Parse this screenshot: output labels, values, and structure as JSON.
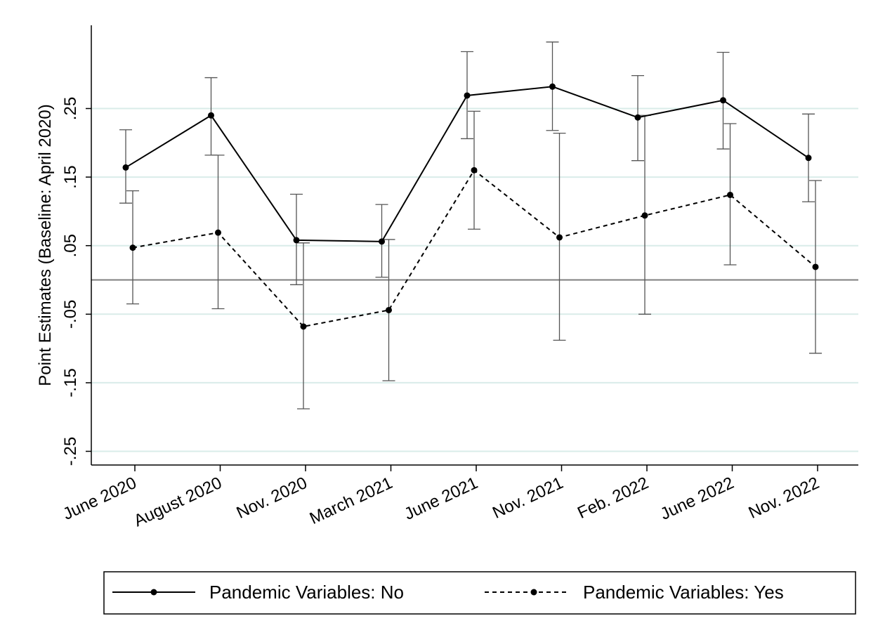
{
  "chart_data": {
    "type": "line",
    "title": "",
    "xlabel": "",
    "ylabel": "Point Estimates (Baseline: April 2020)",
    "categories": [
      "June 2020",
      "August 2020",
      "Nov. 2020",
      "March 2021",
      "June 2021",
      "Nov. 2021",
      "Feb. 2022",
      "June 2022",
      "Nov. 2022"
    ],
    "y_ticks": [
      -0.25,
      -0.15,
      -0.05,
      0.05,
      0.15,
      0.25
    ],
    "y_tick_labels": [
      "-.25",
      "-.15",
      "-.05",
      ".05",
      ".15",
      ".25"
    ],
    "ylim": [
      -0.265,
      0.37
    ],
    "reference_line": 0,
    "grid": true,
    "legend_position": "bottom",
    "series": [
      {
        "name": "Pandemic Variables: No",
        "line_style": "solid",
        "color": "#000000",
        "values": [
          0.164,
          0.24,
          0.058,
          0.056,
          0.269,
          0.282,
          0.237,
          0.262,
          0.178
        ],
        "ci_low": [
          0.112,
          0.182,
          -0.007,
          0.004,
          0.206,
          0.218,
          0.174,
          0.191,
          0.114
        ],
        "ci_high": [
          0.219,
          0.295,
          0.125,
          0.11,
          0.333,
          0.347,
          0.298,
          0.332,
          0.242
        ]
      },
      {
        "name": "Pandemic Variables: Yes",
        "line_style": "dashed",
        "color": "#000000",
        "values": [
          0.047,
          0.069,
          -0.068,
          -0.044,
          0.16,
          0.062,
          0.094,
          0.124,
          0.019
        ],
        "ci_low": [
          -0.035,
          -0.042,
          -0.188,
          -0.147,
          0.074,
          -0.088,
          -0.05,
          0.022,
          -0.107
        ],
        "ci_high": [
          0.13,
          0.182,
          0.054,
          0.059,
          0.246,
          0.214,
          0.24,
          0.228,
          0.145
        ]
      }
    ],
    "colors": {
      "grid": "#d9ece9",
      "zero_line": "#7f7f7f",
      "ci": "#555555",
      "axis": "#000000"
    }
  }
}
